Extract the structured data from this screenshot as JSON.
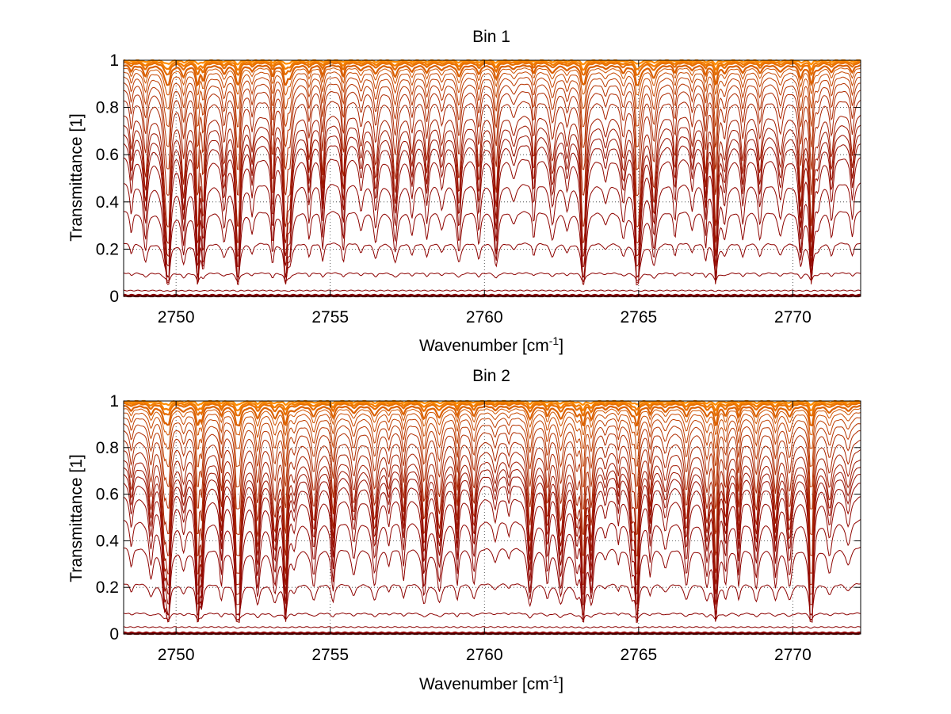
{
  "chart_data": [
    {
      "type": "line",
      "title": "Bin 1",
      "xlabel": "Wavenumber [cm",
      "xlabel_sup": "-1",
      "xlabel_end": "]",
      "ylabel": "Transmittance [1]",
      "xlim": [
        2748.3,
        2772.2
      ],
      "ylim": [
        0,
        1
      ],
      "xticks": [
        2750,
        2755,
        2760,
        2765,
        2770
      ],
      "yticks": [
        0,
        0.2,
        0.4,
        0.6,
        0.8,
        1
      ],
      "ytick_labels": [
        "0",
        "0.2",
        "0.4",
        "0.6",
        "0.8",
        "1"
      ],
      "grid": true,
      "line_colors": [
        "#8b0000",
        "#ff8c00"
      ],
      "series_baselines": [
        0.0,
        0.005,
        0.025,
        0.1,
        0.23,
        0.37,
        0.49,
        0.6,
        0.66,
        0.7,
        0.74,
        0.78,
        0.84,
        0.88,
        0.91,
        0.935,
        0.955,
        0.97,
        0.98,
        0.99,
        0.995,
        1.0
      ]
    },
    {
      "type": "line",
      "title": "Bin 2",
      "xlabel": "Wavenumber [cm",
      "xlabel_sup": "-1",
      "xlabel_end": "]",
      "ylabel": "Transmittance [1]",
      "xlim": [
        2748.3,
        2772.2
      ],
      "ylim": [
        0,
        1
      ],
      "xticks": [
        2750,
        2755,
        2760,
        2765,
        2770
      ],
      "yticks": [
        0,
        0.2,
        0.4,
        0.6,
        0.8,
        1
      ],
      "ytick_labels": [
        "0",
        "0.2",
        "0.4",
        "0.6",
        "0.8",
        "1"
      ],
      "grid": true,
      "line_colors": [
        "#8b0000",
        "#ff8c00"
      ],
      "series_baselines": [
        0.0,
        0.005,
        0.03,
        0.09,
        0.22,
        0.38,
        0.5,
        0.6,
        0.66,
        0.7,
        0.73,
        0.76,
        0.8,
        0.84,
        0.88,
        0.91,
        0.935,
        0.955,
        0.97,
        0.98,
        0.99,
        0.995,
        1.0
      ]
    }
  ]
}
